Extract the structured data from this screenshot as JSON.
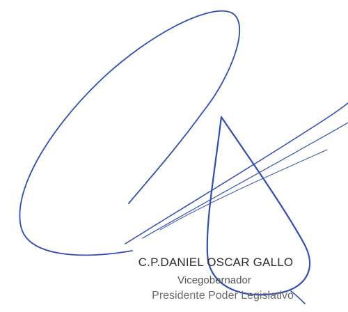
{
  "signatory": {
    "name": "C.P.DANIEL OSCAR GALLO",
    "title": "Vicegobernador",
    "role": "Presidente Poder Legislativo"
  },
  "colors": {
    "ink": "#2f4db5",
    "text": "#3a3a3a"
  }
}
